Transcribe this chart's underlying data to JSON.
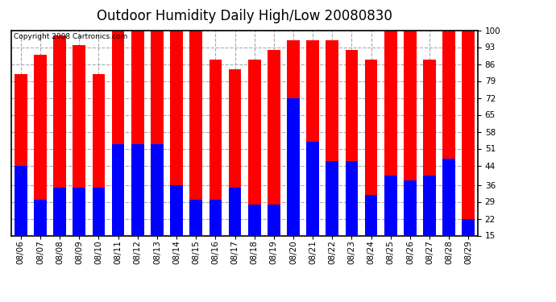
{
  "title": "Outdoor Humidity Daily High/Low 20080830",
  "copyright_text": "Copyright 2008 Cartronics.com",
  "categories": [
    "08/06",
    "08/07",
    "08/08",
    "08/09",
    "08/10",
    "08/11",
    "08/12",
    "08/13",
    "08/14",
    "08/15",
    "08/16",
    "08/17",
    "08/18",
    "08/19",
    "08/20",
    "08/21",
    "08/22",
    "08/23",
    "08/24",
    "08/25",
    "08/26",
    "08/27",
    "08/28",
    "08/29"
  ],
  "highs": [
    82,
    90,
    98,
    94,
    82,
    100,
    100,
    100,
    100,
    100,
    88,
    84,
    88,
    92,
    96,
    96,
    96,
    92,
    88,
    100,
    100,
    88,
    100,
    100
  ],
  "lows": [
    44,
    30,
    35,
    35,
    35,
    53,
    53,
    53,
    36,
    30,
    30,
    35,
    28,
    28,
    72,
    54,
    46,
    46,
    32,
    40,
    38,
    40,
    47,
    22
  ],
  "high_color": "#ff0000",
  "low_color": "#0000ff",
  "bg_color": "#ffffff",
  "grid_color": "#aaaaaa",
  "ylim_min": 15,
  "ylim_max": 100,
  "yticks": [
    15,
    22,
    29,
    36,
    44,
    51,
    58,
    65,
    72,
    79,
    86,
    93,
    100
  ],
  "title_fontsize": 12,
  "tick_fontsize": 7.5,
  "copyright_fontsize": 6.5,
  "bar_width": 0.65,
  "fig_width": 6.9,
  "fig_height": 3.75,
  "dpi": 100
}
